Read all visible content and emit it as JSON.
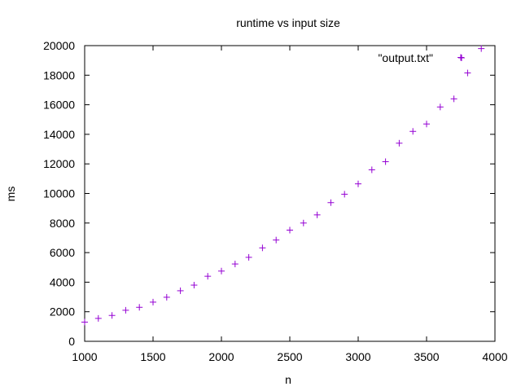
{
  "chart_data": {
    "type": "scatter",
    "title": "runtime vs input size",
    "xlabel": "n",
    "ylabel": "ms",
    "xlim": [
      1000,
      4000
    ],
    "ylim": [
      0,
      20000
    ],
    "xticks": [
      "1000",
      "1500",
      "2000",
      "2500",
      "3000",
      "3500",
      "4000"
    ],
    "yticks": [
      "0",
      "2000",
      "4000",
      "6000",
      "8000",
      "10000",
      "12000",
      "14000",
      "16000",
      "18000",
      "20000"
    ],
    "grid": false,
    "legend": {
      "position": "top-right",
      "entries": [
        "\"output.txt\""
      ]
    },
    "series": [
      {
        "name": "\"output.txt\"",
        "color": "#9400d3",
        "marker": "plus",
        "x": [
          1000,
          1100,
          1200,
          1300,
          1400,
          1500,
          1600,
          1700,
          1800,
          1900,
          2000,
          2100,
          2200,
          2300,
          2400,
          2500,
          2600,
          2700,
          2800,
          2900,
          3000,
          3100,
          3200,
          3300,
          3400,
          3500,
          3600,
          3700,
          3750,
          3800,
          3900
        ],
        "y": [
          1300,
          1550,
          1750,
          2100,
          2300,
          2650,
          2980,
          3420,
          3800,
          4400,
          4750,
          5230,
          5680,
          6320,
          6850,
          7520,
          8000,
          8550,
          9380,
          9950,
          10650,
          11600,
          12150,
          13400,
          14200,
          14700,
          15850,
          16400,
          19200,
          18150,
          19800
        ]
      }
    ]
  }
}
